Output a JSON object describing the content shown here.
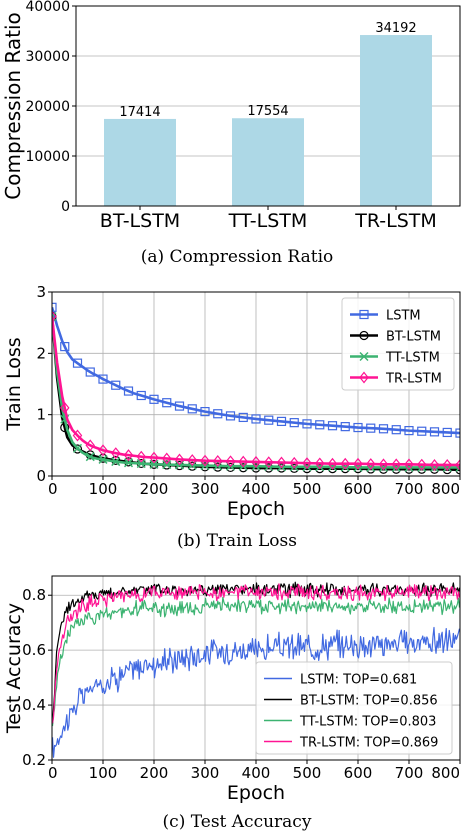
{
  "chart_data": [
    {
      "type": "bar",
      "caption": "(a)  Compression Ratio",
      "ylabel": "Compression Ratio",
      "categories": [
        "BT-LSTM",
        "TT-LSTM",
        "TR-LSTM"
      ],
      "values": [
        17414,
        17554,
        34192
      ],
      "value_labels": [
        "17414",
        "17554",
        "34192"
      ],
      "ylim": [
        0,
        40000
      ],
      "yticks": [
        0,
        10000,
        20000,
        30000,
        40000
      ],
      "ytick_labels": [
        "0",
        "10000",
        "20000",
        "30000",
        "40000"
      ],
      "bar_color": "#add8e6",
      "grid": true
    },
    {
      "type": "line",
      "caption": "(b)  Train Loss",
      "xlabel": "Epoch",
      "ylabel": "Train Loss",
      "xlim": [
        0,
        800
      ],
      "ylim": [
        0,
        3
      ],
      "xticks": [
        0,
        100,
        200,
        300,
        400,
        500,
        600,
        700,
        800
      ],
      "xtick_labels": [
        "0",
        "100",
        "200",
        "300",
        "400",
        "500",
        "600",
        "700",
        "800"
      ],
      "yticks": [
        0,
        1,
        2,
        3
      ],
      "ytick_labels": [
        "0",
        "1",
        "2",
        "3"
      ],
      "grid": true,
      "legend_position": "top-right",
      "x": [
        0,
        10,
        20,
        30,
        40,
        50,
        60,
        70,
        80,
        90,
        100,
        120,
        140,
        160,
        180,
        200,
        250,
        300,
        350,
        400,
        450,
        500,
        550,
        600,
        650,
        700,
        750,
        800
      ],
      "series": [
        {
          "name": "LSTM",
          "color": "#4169e1",
          "marker": "square",
          "values": [
            2.75,
            2.45,
            2.2,
            2.02,
            1.9,
            1.84,
            1.78,
            1.72,
            1.67,
            1.63,
            1.58,
            1.5,
            1.42,
            1.35,
            1.3,
            1.25,
            1.14,
            1.05,
            0.98,
            0.93,
            0.89,
            0.85,
            0.82,
            0.79,
            0.77,
            0.74,
            0.72,
            0.7
          ]
        },
        {
          "name": "BT-LSTM",
          "color": "#000000",
          "marker": "circle",
          "values": [
            2.6,
            1.6,
            0.95,
            0.63,
            0.5,
            0.44,
            0.4,
            0.36,
            0.33,
            0.31,
            0.29,
            0.26,
            0.24,
            0.22,
            0.2,
            0.19,
            0.17,
            0.15,
            0.14,
            0.13,
            0.13,
            0.12,
            0.12,
            0.12,
            0.11,
            0.11,
            0.11,
            0.1
          ]
        },
        {
          "name": "TT-LSTM",
          "color": "#3cb371",
          "marker": "x",
          "values": [
            2.6,
            1.7,
            1.1,
            0.75,
            0.55,
            0.45,
            0.38,
            0.33,
            0.3,
            0.28,
            0.27,
            0.24,
            0.22,
            0.21,
            0.2,
            0.19,
            0.18,
            0.17,
            0.16,
            0.16,
            0.15,
            0.15,
            0.15,
            0.14,
            0.14,
            0.14,
            0.14,
            0.14
          ]
        },
        {
          "name": "TR-LSTM",
          "color": "#ff1493",
          "marker": "diamond",
          "values": [
            2.6,
            1.85,
            1.3,
            0.92,
            0.75,
            0.66,
            0.58,
            0.52,
            0.48,
            0.45,
            0.42,
            0.38,
            0.35,
            0.33,
            0.31,
            0.3,
            0.27,
            0.25,
            0.24,
            0.23,
            0.22,
            0.21,
            0.2,
            0.2,
            0.19,
            0.19,
            0.18,
            0.18
          ]
        }
      ]
    },
    {
      "type": "line",
      "caption": "(c)  Test Accuracy",
      "xlabel": "Epoch",
      "ylabel": "Test Accuracy",
      "xlim": [
        0,
        800
      ],
      "ylim": [
        0.2,
        0.87
      ],
      "xticks": [
        0,
        100,
        200,
        300,
        400,
        500,
        600,
        700,
        800
      ],
      "xtick_labels": [
        "0",
        "100",
        "200",
        "300",
        "400",
        "500",
        "600",
        "700",
        "800"
      ],
      "yticks": [
        0.2,
        0.4,
        0.6,
        0.8
      ],
      "ytick_labels": [
        "0.2",
        "0.4",
        "0.6",
        "0.8"
      ],
      "grid": true,
      "legend_position": "bottom-right",
      "x": [
        0,
        10,
        20,
        30,
        40,
        50,
        60,
        70,
        80,
        90,
        100,
        120,
        140,
        160,
        180,
        200,
        250,
        300,
        350,
        400,
        450,
        500,
        550,
        600,
        650,
        700,
        750,
        800
      ],
      "series": [
        {
          "name": "LSTM: TOP=0.681",
          "color": "#4169e1",
          "values": [
            0.23,
            0.27,
            0.31,
            0.35,
            0.38,
            0.41,
            0.43,
            0.45,
            0.46,
            0.47,
            0.48,
            0.5,
            0.51,
            0.53,
            0.54,
            0.55,
            0.57,
            0.59,
            0.6,
            0.6,
            0.61,
            0.61,
            0.62,
            0.62,
            0.62,
            0.63,
            0.63,
            0.64
          ],
          "noise": 0.03
        },
        {
          "name": "BT-LSTM: TOP=0.856",
          "color": "#000000",
          "values": [
            0.3,
            0.62,
            0.71,
            0.75,
            0.77,
            0.78,
            0.79,
            0.8,
            0.8,
            0.8,
            0.81,
            0.81,
            0.81,
            0.82,
            0.82,
            0.82,
            0.82,
            0.82,
            0.82,
            0.82,
            0.82,
            0.82,
            0.82,
            0.82,
            0.82,
            0.82,
            0.82,
            0.82
          ],
          "noise": 0.015
        },
        {
          "name": "TT-LSTM: TOP=0.803",
          "color": "#3cb371",
          "values": [
            0.3,
            0.5,
            0.6,
            0.65,
            0.68,
            0.7,
            0.71,
            0.72,
            0.72,
            0.73,
            0.73,
            0.74,
            0.74,
            0.75,
            0.75,
            0.75,
            0.75,
            0.76,
            0.76,
            0.76,
            0.76,
            0.76,
            0.76,
            0.76,
            0.76,
            0.76,
            0.76,
            0.76
          ],
          "noise": 0.017
        },
        {
          "name": "TR-LSTM: TOP=0.869",
          "color": "#ff1493",
          "values": [
            0.3,
            0.55,
            0.65,
            0.7,
            0.73,
            0.75,
            0.76,
            0.77,
            0.78,
            0.78,
            0.79,
            0.79,
            0.8,
            0.8,
            0.8,
            0.81,
            0.81,
            0.81,
            0.81,
            0.81,
            0.81,
            0.81,
            0.81,
            0.81,
            0.81,
            0.81,
            0.81,
            0.81
          ],
          "noise": 0.017
        }
      ]
    }
  ]
}
